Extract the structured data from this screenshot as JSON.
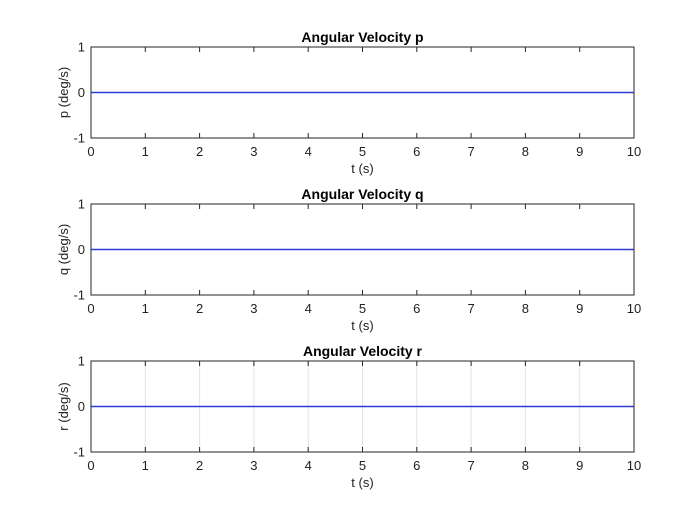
{
  "chart_data": [
    {
      "type": "line",
      "title": "Angular Velocity p",
      "xlabel": "t (s)",
      "ylabel": "p (deg/s)",
      "xlim": [
        0,
        10
      ],
      "ylim": [
        -1,
        1
      ],
      "xticks": [
        "0",
        "1",
        "2",
        "3",
        "4",
        "5",
        "6",
        "7",
        "8",
        "9",
        "10"
      ],
      "yticks": [
        "-1",
        "0",
        "1"
      ],
      "grid": false,
      "series": [
        {
          "x": [
            0,
            10
          ],
          "y": [
            0,
            0
          ],
          "color": "#2b3fd6"
        }
      ]
    },
    {
      "type": "line",
      "title": "Angular Velocity q",
      "xlabel": "t (s)",
      "ylabel": "q (deg/s)",
      "xlim": [
        0,
        10
      ],
      "ylim": [
        -1,
        1
      ],
      "xticks": [
        "0",
        "1",
        "2",
        "3",
        "4",
        "5",
        "6",
        "7",
        "8",
        "9",
        "10"
      ],
      "yticks": [
        "-1",
        "0",
        "1"
      ],
      "grid": false,
      "series": [
        {
          "x": [
            0,
            10
          ],
          "y": [
            0,
            0
          ],
          "color": "#2b3fd6"
        }
      ]
    },
    {
      "type": "line",
      "title": "Angular Velocity r",
      "xlabel": "t (s)",
      "ylabel": "r (deg/s)",
      "xlim": [
        0,
        10
      ],
      "ylim": [
        -1,
        1
      ],
      "xticks": [
        "0",
        "1",
        "2",
        "3",
        "4",
        "5",
        "6",
        "7",
        "8",
        "9",
        "10"
      ],
      "yticks": [
        "-1",
        "0",
        "1"
      ],
      "grid": true,
      "grid_axis": "x",
      "series": [
        {
          "x": [
            0,
            10
          ],
          "y": [
            0,
            0
          ],
          "color": "#2b3fd6"
        }
      ]
    }
  ]
}
